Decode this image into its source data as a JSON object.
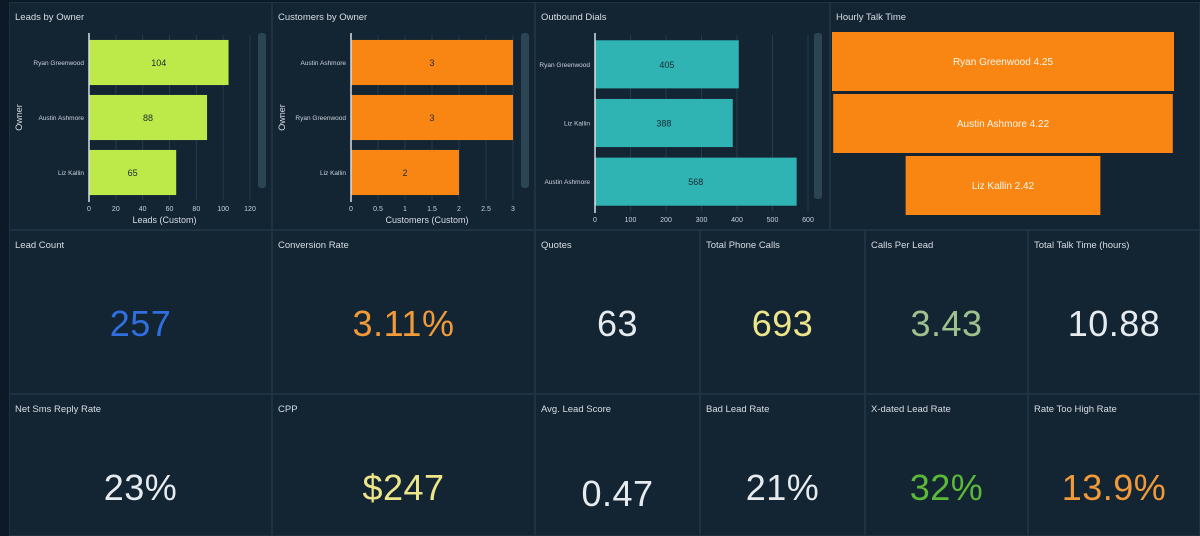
{
  "charts": [
    {
      "title": "Leads by Owner",
      "type": "bar",
      "orientation": "horizontal",
      "ylabel": "Owner",
      "xlabel": "Leads (Custom)",
      "categories": [
        "Ryan Greenwood",
        "Austin Ashmore",
        "Liz Kallin"
      ],
      "values": [
        104,
        88,
        65
      ],
      "xlim": [
        0,
        120
      ],
      "ticks": [
        "0",
        "20",
        "40",
        "60",
        "80",
        "100",
        "120"
      ],
      "color": "#bdea48"
    },
    {
      "title": "Customers by Owner",
      "type": "bar",
      "orientation": "horizontal",
      "ylabel": "Owner",
      "xlabel": "Customers (Custom)",
      "categories": [
        "Austin Ashmore",
        "Ryan Greenwood",
        "Liz Kallin"
      ],
      "values": [
        3,
        3,
        2
      ],
      "xlim": [
        0,
        3
      ],
      "ticks": [
        "0",
        "0.5",
        "1",
        "1.5",
        "2",
        "2.5",
        "3"
      ],
      "color": "#f98512"
    },
    {
      "title": "Outbound Dials",
      "type": "bar",
      "orientation": "horizontal",
      "ylabel": "",
      "xlabel": "",
      "categories": [
        "Ryan Greenwood",
        "Liz Kallin",
        "Austin Ashmore"
      ],
      "values": [
        405,
        388,
        568
      ],
      "xlim": [
        0,
        600
      ],
      "ticks": [
        "0",
        "100",
        "200",
        "300",
        "400",
        "500",
        "600"
      ],
      "color": "#2fb3b3"
    },
    {
      "title": "Hourly Talk Time",
      "type": "funnel",
      "categories": [
        "Ryan Greenwood",
        "Austin Ashmore",
        "Liz Kallin"
      ],
      "values": [
        4.25,
        4.22,
        2.42
      ],
      "labels": [
        "Ryan Greenwood 4.25",
        "Austin Ashmore 4.22",
        "Liz Kallin 2.42"
      ],
      "color": "#f98512"
    }
  ],
  "kpis_row1": [
    {
      "title": "Lead Count",
      "value": "257",
      "color": "#2f6fe0"
    },
    {
      "title": "Conversion Rate",
      "value": "3.11%",
      "color": "#f19a3a"
    },
    {
      "title": "Quotes",
      "value": "63",
      "color": "#e6ebef"
    },
    {
      "title": "Total Phone Calls",
      "value": "693",
      "color": "#ece58a"
    },
    {
      "title": "Calls Per Lead",
      "value": "3.43",
      "color": "#9fc18d"
    },
    {
      "title": "Total Talk Time (hours)",
      "value": "10.88",
      "color": "#e6ebef"
    }
  ],
  "kpis_row2": [
    {
      "title": "Net Sms Reply Rate",
      "value": "23%",
      "color": "#e6ebef"
    },
    {
      "title": "CPP",
      "value": "$247",
      "color": "#ece58a"
    },
    {
      "title": "Avg. Lead Score",
      "value": "0.47",
      "color": "#e6ebef"
    },
    {
      "title": "Bad Lead Rate",
      "value": "21%",
      "color": "#e6ebef"
    },
    {
      "title": "X-dated Lead Rate",
      "value": "32%",
      "color": "#5aba37"
    },
    {
      "title": "Rate Too High Rate",
      "value": "13.9%",
      "color": "#f19a3a"
    }
  ]
}
